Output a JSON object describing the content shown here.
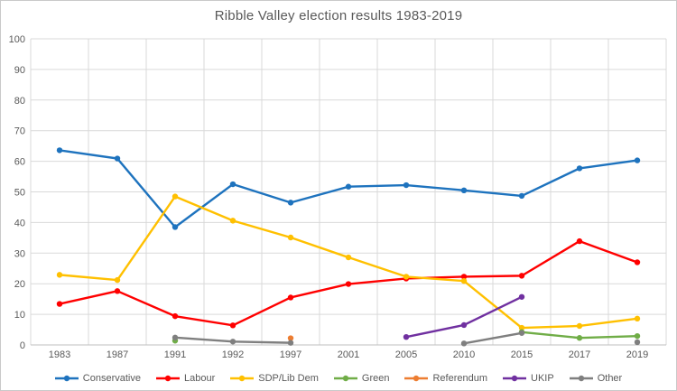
{
  "chart_data": {
    "type": "line",
    "title": "Ribble Valley election results 1983-2019",
    "categories": [
      "1983",
      "1987",
      "1991",
      "1992",
      "1997",
      "2001",
      "2005",
      "2010",
      "2015",
      "2017",
      "2019"
    ],
    "series": [
      {
        "name": "Conservative",
        "color": "#1E73BE",
        "values": [
          63.6,
          60.9,
          38.5,
          52.5,
          46.5,
          51.7,
          52.2,
          50.5,
          48.7,
          57.7,
          60.3
        ]
      },
      {
        "name": "Labour",
        "color": "#FF0000",
        "values": [
          13.4,
          17.6,
          9.4,
          6.4,
          15.5,
          19.9,
          21.7,
          22.3,
          22.6,
          33.9,
          27.0
        ]
      },
      {
        "name": "SDP/Lib Dem",
        "color": "#FFC000",
        "values": [
          22.9,
          21.2,
          48.5,
          40.6,
          35.1,
          28.6,
          22.3,
          20.9,
          5.6,
          6.2,
          8.6
        ]
      },
      {
        "name": "Green",
        "color": "#70AD47",
        "values": [
          null,
          null,
          1.4,
          null,
          null,
          null,
          null,
          null,
          4.2,
          2.3,
          2.9
        ]
      },
      {
        "name": "Referendum",
        "color": "#ED7D31",
        "values": [
          null,
          null,
          null,
          null,
          2.2,
          null,
          null,
          null,
          null,
          null,
          null
        ]
      },
      {
        "name": "UKIP",
        "color": "#7030A0",
        "values": [
          null,
          null,
          null,
          null,
          null,
          null,
          2.6,
          6.5,
          15.7,
          null,
          null
        ]
      },
      {
        "name": "Other",
        "color": "#7F7F7F",
        "values": [
          null,
          null,
          2.4,
          1.1,
          0.7,
          null,
          null,
          0.5,
          3.9,
          null,
          0.9
        ]
      }
    ],
    "ylim": [
      0,
      100
    ],
    "ytick_step": 10,
    "grid": true,
    "legend_position": "bottom",
    "xlabel": "",
    "ylabel": ""
  },
  "colors": {
    "grid": "#D9D9D9",
    "axis": "#BFBFBF",
    "text": "#595959",
    "background": "#FFFFFF"
  }
}
